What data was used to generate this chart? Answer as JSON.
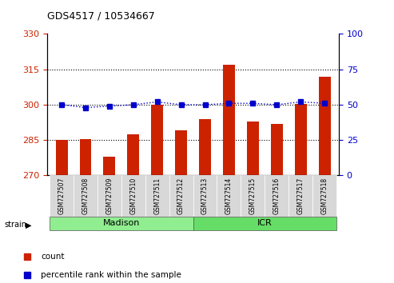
{
  "title": "GDS4517 / 10534667",
  "samples": [
    "GSM727507",
    "GSM727508",
    "GSM727509",
    "GSM727510",
    "GSM727511",
    "GSM727512",
    "GSM727513",
    "GSM727514",
    "GSM727515",
    "GSM727516",
    "GSM727517",
    "GSM727518"
  ],
  "counts": [
    285,
    285.5,
    278,
    287.5,
    300,
    289,
    294,
    317,
    293,
    292,
    300.5,
    312
  ],
  "percentiles": [
    50,
    48,
    49,
    50,
    52,
    50,
    50,
    51,
    51,
    50,
    52,
    51
  ],
  "strain_groups": [
    {
      "label": "Madison",
      "start": 0,
      "end": 6,
      "color": "#90EE90"
    },
    {
      "label": "ICR",
      "start": 6,
      "end": 12,
      "color": "#66DD66"
    }
  ],
  "bar_color": "#CC2200",
  "dot_color": "#0000CC",
  "ylim_left": [
    270,
    330
  ],
  "ylim_right": [
    0,
    100
  ],
  "yticks_left": [
    270,
    285,
    300,
    315,
    330
  ],
  "yticks_right": [
    0,
    25,
    50,
    75,
    100
  ],
  "bar_width": 0.5,
  "plot_bg": "white"
}
